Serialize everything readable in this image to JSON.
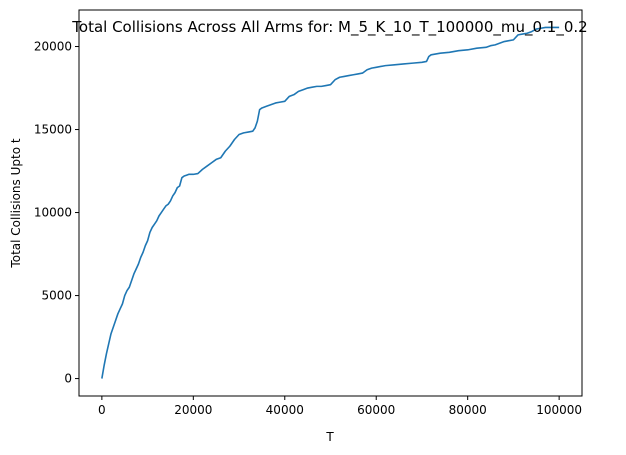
{
  "chart_data": {
    "type": "line",
    "title": "Total Collisions Across All Arms for: M_5_K_10_T_100000_mu_0.1_0.2",
    "xlabel": "T",
    "ylabel": "Total Collisions Upto t",
    "xlim": [
      -5000,
      105000
    ],
    "ylim": [
      -1050,
      22200
    ],
    "xticks": [
      0,
      20000,
      40000,
      60000,
      80000,
      100000
    ],
    "xtick_labels": [
      "0",
      "20000",
      "40000",
      "60000",
      "80000",
      "100000"
    ],
    "yticks": [
      0,
      5000,
      10000,
      15000,
      20000
    ],
    "ytick_labels": [
      "0",
      "5000",
      "10000",
      "15000",
      "20000"
    ],
    "grid": false,
    "line_color": "#1f77b4",
    "series": [
      {
        "x": [
          0,
          500,
          1000,
          1500,
          2000,
          2500,
          3000,
          3500,
          4000,
          4500,
          5000,
          5500,
          6000,
          6500,
          7000,
          7500,
          8000,
          8500,
          9000,
          9500,
          10000,
          10500,
          11000,
          11500,
          12000,
          12500,
          13000,
          13500,
          14000,
          14500,
          15000,
          15500,
          16000,
          16500,
          17000,
          17500,
          18000,
          18500,
          19000,
          20000,
          21000,
          22000,
          23000,
          24000,
          25000,
          26000,
          27000,
          28000,
          29000,
          30000,
          31000,
          32000,
          33000,
          33500,
          34000,
          34500,
          35000,
          36000,
          37000,
          38000,
          39000,
          40000,
          41000,
          42000,
          43000,
          44000,
          45000,
          46000,
          47000,
          48000,
          49000,
          50000,
          51000,
          52000,
          53000,
          54000,
          55000,
          56000,
          57000,
          58000,
          59000,
          60000,
          62000,
          64000,
          66000,
          68000,
          70000,
          71000,
          71500,
          72000,
          74000,
          76000,
          78000,
          80000,
          82000,
          84000,
          85000,
          86000,
          88000,
          89000,
          90000,
          91000,
          92000,
          93000,
          94000,
          95000,
          96000,
          97000,
          98000,
          100000
        ],
        "y": [
          0,
          800,
          1500,
          2100,
          2700,
          3100,
          3500,
          3900,
          4200,
          4500,
          5000,
          5300,
          5500,
          5900,
          6300,
          6600,
          6900,
          7300,
          7600,
          8000,
          8300,
          8800,
          9100,
          9300,
          9500,
          9800,
          10000,
          10200,
          10400,
          10500,
          10700,
          11000,
          11200,
          11500,
          11600,
          12100,
          12200,
          12250,
          12300,
          12300,
          12350,
          12600,
          12800,
          13000,
          13200,
          13300,
          13700,
          14000,
          14400,
          14700,
          14800,
          14850,
          14900,
          15100,
          15500,
          16200,
          16300,
          16400,
          16500,
          16600,
          16650,
          16700,
          17000,
          17100,
          17300,
          17400,
          17500,
          17550,
          17600,
          17600,
          17650,
          17700,
          18000,
          18150,
          18200,
          18250,
          18300,
          18350,
          18400,
          18600,
          18700,
          18750,
          18850,
          18900,
          18950,
          19000,
          19050,
          19100,
          19400,
          19500,
          19600,
          19650,
          19750,
          19800,
          19900,
          19950,
          20050,
          20100,
          20300,
          20350,
          20400,
          20700,
          20750,
          20800,
          20900,
          21050,
          21100,
          21150,
          21150,
          21150
        ]
      }
    ]
  }
}
